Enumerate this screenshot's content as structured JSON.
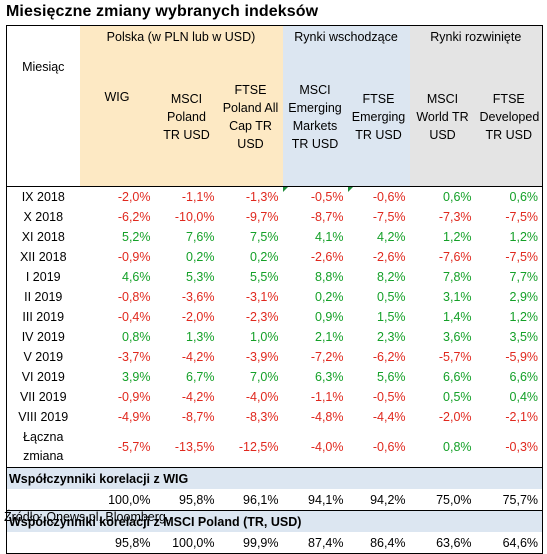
{
  "title": "Miesięczne zmiany wybranych indeksów",
  "groups": {
    "poland": "Polska (w PLN lub w USD)",
    "emerging": "Rynki wschodzące",
    "developed": "Rynki rozwinięte"
  },
  "headers": {
    "month": "Miesiąc",
    "wig": "WIG",
    "msci_poland": "MSCI Poland TR USD",
    "ftse_poland": "FTSE Poland All Cap TR USD",
    "msci_em": "MSCI Emerging Markets TR USD",
    "ftse_em": "FTSE Emerging TR USD",
    "msci_world": "MSCI World TR USD",
    "ftse_dev": "FTSE Developed TR USD"
  },
  "rows": [
    {
      "month": "IX 2018",
      "v": [
        "-2,0%",
        "-1,1%",
        "-1,3%",
        "-0,5%",
        "-0,6%",
        "0,6%",
        "0,6%"
      ]
    },
    {
      "month": "X 2018",
      "v": [
        "-6,2%",
        "-10,0%",
        "-9,7%",
        "-8,7%",
        "-7,5%",
        "-7,3%",
        "-7,5%"
      ]
    },
    {
      "month": "XI 2018",
      "v": [
        "5,2%",
        "7,6%",
        "7,5%",
        "4,1%",
        "4,2%",
        "1,2%",
        "1,2%"
      ]
    },
    {
      "month": "XII 2018",
      "v": [
        "-0,9%",
        "0,2%",
        "0,2%",
        "-2,6%",
        "-2,6%",
        "-7,6%",
        "-7,5%"
      ]
    },
    {
      "month": "I 2019",
      "v": [
        "4,6%",
        "5,3%",
        "5,5%",
        "8,8%",
        "8,2%",
        "7,8%",
        "7,7%"
      ]
    },
    {
      "month": "II 2019",
      "v": [
        "-0,8%",
        "-3,6%",
        "-3,1%",
        "0,2%",
        "0,5%",
        "3,1%",
        "2,9%"
      ]
    },
    {
      "month": "III 2019",
      "v": [
        "-0,4%",
        "-2,0%",
        "-2,3%",
        "0,9%",
        "1,5%",
        "1,4%",
        "1,2%"
      ]
    },
    {
      "month": "IV 2019",
      "v": [
        "0,8%",
        "1,3%",
        "1,0%",
        "2,1%",
        "2,3%",
        "3,6%",
        "3,5%"
      ]
    },
    {
      "month": "V 2019",
      "v": [
        "-3,7%",
        "-4,2%",
        "-3,9%",
        "-7,2%",
        "-6,2%",
        "-5,7%",
        "-5,9%"
      ]
    },
    {
      "month": "VI 2019",
      "v": [
        "3,9%",
        "6,7%",
        "7,0%",
        "6,3%",
        "5,6%",
        "6,6%",
        "6,6%"
      ]
    },
    {
      "month": "VII 2019",
      "v": [
        "-0,9%",
        "-4,2%",
        "-4,0%",
        "-1,1%",
        "-0,5%",
        "0,5%",
        "0,4%"
      ]
    },
    {
      "month": "VIII 2019",
      "v": [
        "-4,9%",
        "-8,7%",
        "-8,3%",
        "-4,8%",
        "-4,4%",
        "-2,0%",
        "-2,1%"
      ]
    }
  ],
  "total": {
    "label_line1": "Łączna",
    "label_line2": "zmiana",
    "v": [
      "-5,7%",
      "-13,5%",
      "-12,5%",
      "-4,0%",
      "-0,6%",
      "0,8%",
      "-0,3%"
    ]
  },
  "corr_wig": {
    "label": "Współczynniki korelacji z WIG",
    "v": [
      "100,0%",
      "95,8%",
      "96,1%",
      "94,1%",
      "94,2%",
      "75,0%",
      "75,7%"
    ]
  },
  "corr_msci": {
    "label": "Współczynniki korelacji z MSCI Poland (TR, USD)",
    "v": [
      "95,8%",
      "100,0%",
      "99,9%",
      "87,4%",
      "86,4%",
      "63,6%",
      "64,6%"
    ]
  },
  "source": "Źródło: Qnews.pl, Bloomberg.",
  "colors": {
    "negative": "#e0281e",
    "positive": "#14a028",
    "poland_header_bg": "#fde9c4",
    "emerging_header_bg": "#dce6f1",
    "developed_header_bg": "#e4e4e4",
    "correlation_bg": "#dce6f1"
  }
}
